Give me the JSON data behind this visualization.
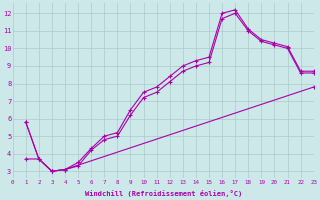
{
  "bg_color": "#cce8e8",
  "grid_color": "#aacccc",
  "line_color": "#aa00aa",
  "marker": "+",
  "xlim": [
    0,
    23
  ],
  "ylim": [
    2.6,
    12.6
  ],
  "xticks": [
    0,
    1,
    2,
    3,
    4,
    5,
    6,
    7,
    8,
    9,
    10,
    11,
    12,
    13,
    14,
    15,
    16,
    17,
    18,
    19,
    20,
    21,
    22,
    23
  ],
  "yticks": [
    3,
    4,
    5,
    6,
    7,
    8,
    9,
    10,
    11,
    12
  ],
  "xlabel": "Windchill (Refroidissement éolien,°C)",
  "curve1_x": [
    1,
    2,
    3,
    4,
    5,
    6,
    7,
    8,
    9,
    10,
    11,
    12,
    13,
    14,
    15,
    16,
    17,
    18,
    19,
    20,
    21,
    22,
    23
  ],
  "curve1_y": [
    5.8,
    3.7,
    3.0,
    3.1,
    3.5,
    4.3,
    5.0,
    5.2,
    6.5,
    7.5,
    7.8,
    8.4,
    9.0,
    9.3,
    9.5,
    12.0,
    12.2,
    11.1,
    10.5,
    10.3,
    10.1,
    8.7,
    8.7
  ],
  "curve2_x": [
    1,
    2,
    3,
    4,
    5,
    6,
    7,
    8,
    9,
    10,
    11,
    12,
    13,
    14,
    15,
    16,
    17,
    18,
    19,
    20,
    21,
    22,
    23
  ],
  "curve2_y": [
    5.8,
    3.7,
    3.0,
    3.1,
    3.3,
    4.2,
    4.8,
    5.0,
    6.2,
    7.2,
    7.5,
    8.1,
    8.7,
    9.0,
    9.2,
    11.7,
    12.0,
    11.0,
    10.4,
    10.2,
    10.0,
    8.6,
    8.6
  ],
  "curve3_x": [
    1,
    2,
    3,
    4,
    23
  ],
  "curve3_y": [
    3.7,
    3.7,
    3.0,
    3.1,
    7.8
  ]
}
